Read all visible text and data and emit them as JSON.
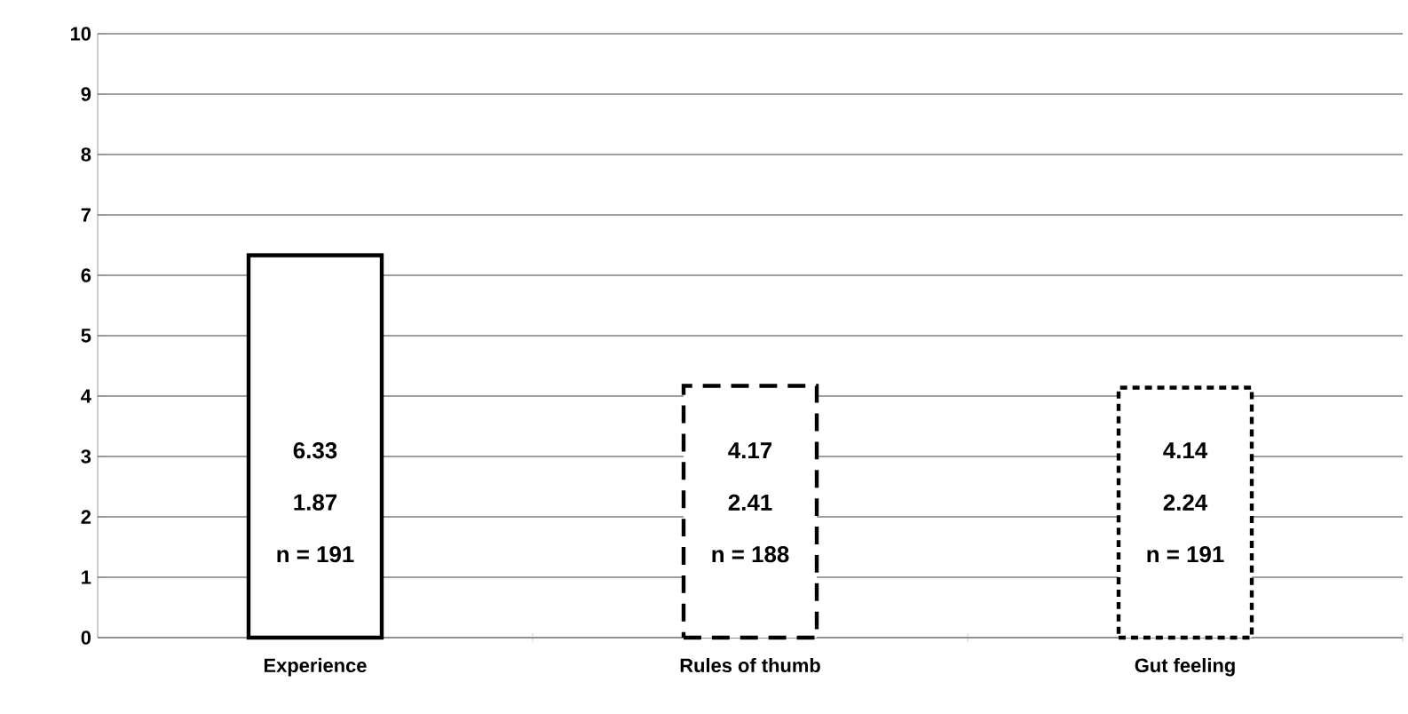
{
  "chart_data": {
    "type": "bar",
    "categories": [
      "Experience",
      "Rules of thumb",
      "Gut feeling"
    ],
    "series": [
      {
        "color": "#000000",
        "line_style": "solid",
        "values": [
          6.33,
          null,
          null
        ]
      },
      {
        "color": "#000000",
        "line_style": "dashed",
        "values": [
          null,
          4.17,
          null
        ]
      },
      {
        "color": "#000000",
        "line_style": "dotted",
        "values": [
          null,
          null,
          4.14
        ]
      }
    ],
    "ylim": [
      0,
      10
    ],
    "yticks": [
      0,
      1,
      2,
      3,
      4,
      5,
      6,
      7,
      8,
      9,
      10
    ],
    "grid": "y",
    "annotations": [
      "6.33",
      "1.87",
      "n = 191",
      "4.17",
      "2.41",
      "n = 188",
      "4.14",
      "2.24",
      "n = 191"
    ]
  }
}
